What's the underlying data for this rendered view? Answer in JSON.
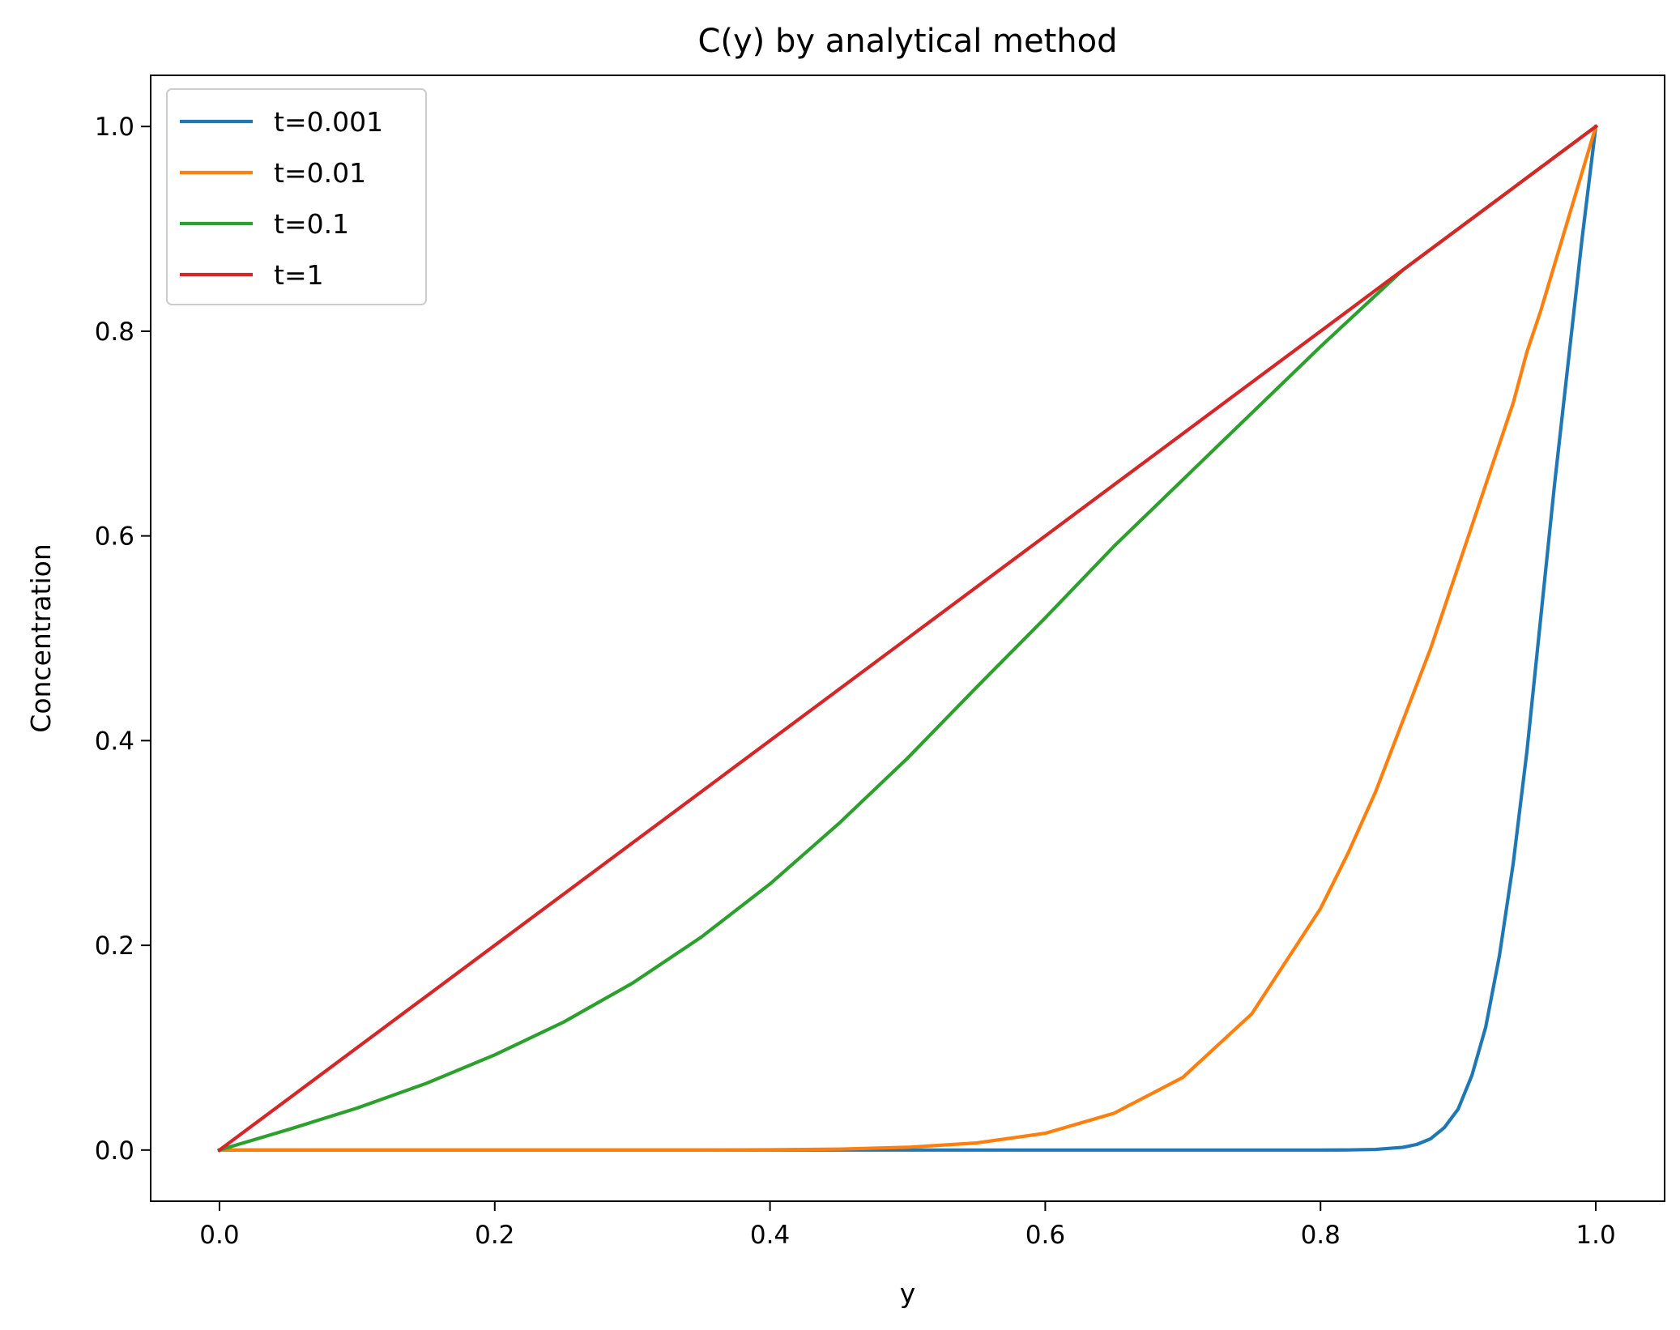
{
  "chart_data": {
    "type": "line",
    "title": "C(y) by analytical method",
    "xlabel": "y",
    "ylabel": "Concentration",
    "xlim": [
      -0.05,
      1.05
    ],
    "ylim": [
      -0.05,
      1.05
    ],
    "xticks": [
      "0.0",
      "0.2",
      "0.4",
      "0.6",
      "0.8",
      "1.0"
    ],
    "yticks": [
      "0.0",
      "0.2",
      "0.4",
      "0.6",
      "0.8",
      "1.0"
    ],
    "grid": false,
    "legend_position": "top-left",
    "x": [
      0.0,
      0.05,
      0.1,
      0.15,
      0.2,
      0.25,
      0.3,
      0.35,
      0.4,
      0.45,
      0.5,
      0.55,
      0.6,
      0.65,
      0.7,
      0.75,
      0.8,
      0.82,
      0.84,
      0.86,
      0.87,
      0.88,
      0.89,
      0.9,
      0.91,
      0.92,
      0.93,
      0.94,
      0.95,
      0.96,
      0.97,
      0.98,
      0.99,
      1.0
    ],
    "series": [
      {
        "name": "t=0.001",
        "color": "#1f77b4",
        "values": [
          0,
          0,
          0,
          0,
          0,
          0,
          0,
          0,
          0,
          0,
          0,
          0,
          0,
          0,
          0,
          0,
          0,
          0.0001,
          0.0006,
          0.0027,
          0.0055,
          0.011,
          0.022,
          0.04,
          0.073,
          0.12,
          0.19,
          0.28,
          0.39,
          0.52,
          0.65,
          0.77,
          0.89,
          1.0
        ]
      },
      {
        "name": "t=0.01",
        "color": "#ff7f0e",
        "values": [
          0,
          0,
          0,
          0,
          0,
          0,
          0,
          0,
          0.0003,
          0.0009,
          0.0027,
          0.0069,
          0.0164,
          0.036,
          0.071,
          0.133,
          0.236,
          0.29,
          0.35,
          0.42,
          0.455,
          0.49,
          0.53,
          0.57,
          0.61,
          0.65,
          0.69,
          0.73,
          0.78,
          0.82,
          0.865,
          0.91,
          0.955,
          1.0
        ]
      },
      {
        "name": "t=0.1",
        "color": "#2ca02c",
        "values": [
          0,
          0.02,
          0.041,
          0.065,
          0.093,
          0.125,
          0.163,
          0.208,
          0.26,
          0.319,
          0.383,
          0.452,
          0.52,
          0.59,
          0.655,
          0.72,
          0.785,
          0.81,
          0.835,
          0.86,
          0.87,
          0.88,
          0.89,
          0.9,
          0.91,
          0.92,
          0.93,
          0.94,
          0.95,
          0.96,
          0.97,
          0.98,
          0.99,
          1.0
        ]
      },
      {
        "name": "t=1",
        "color": "#d62728",
        "values": [
          0.0,
          0.05,
          0.1,
          0.15,
          0.2,
          0.25,
          0.3,
          0.35,
          0.4,
          0.45,
          0.5,
          0.55,
          0.6,
          0.65,
          0.7,
          0.75,
          0.8,
          0.82,
          0.84,
          0.86,
          0.87,
          0.88,
          0.89,
          0.9,
          0.91,
          0.92,
          0.93,
          0.94,
          0.95,
          0.96,
          0.97,
          0.98,
          0.99,
          1.0
        ]
      }
    ]
  }
}
